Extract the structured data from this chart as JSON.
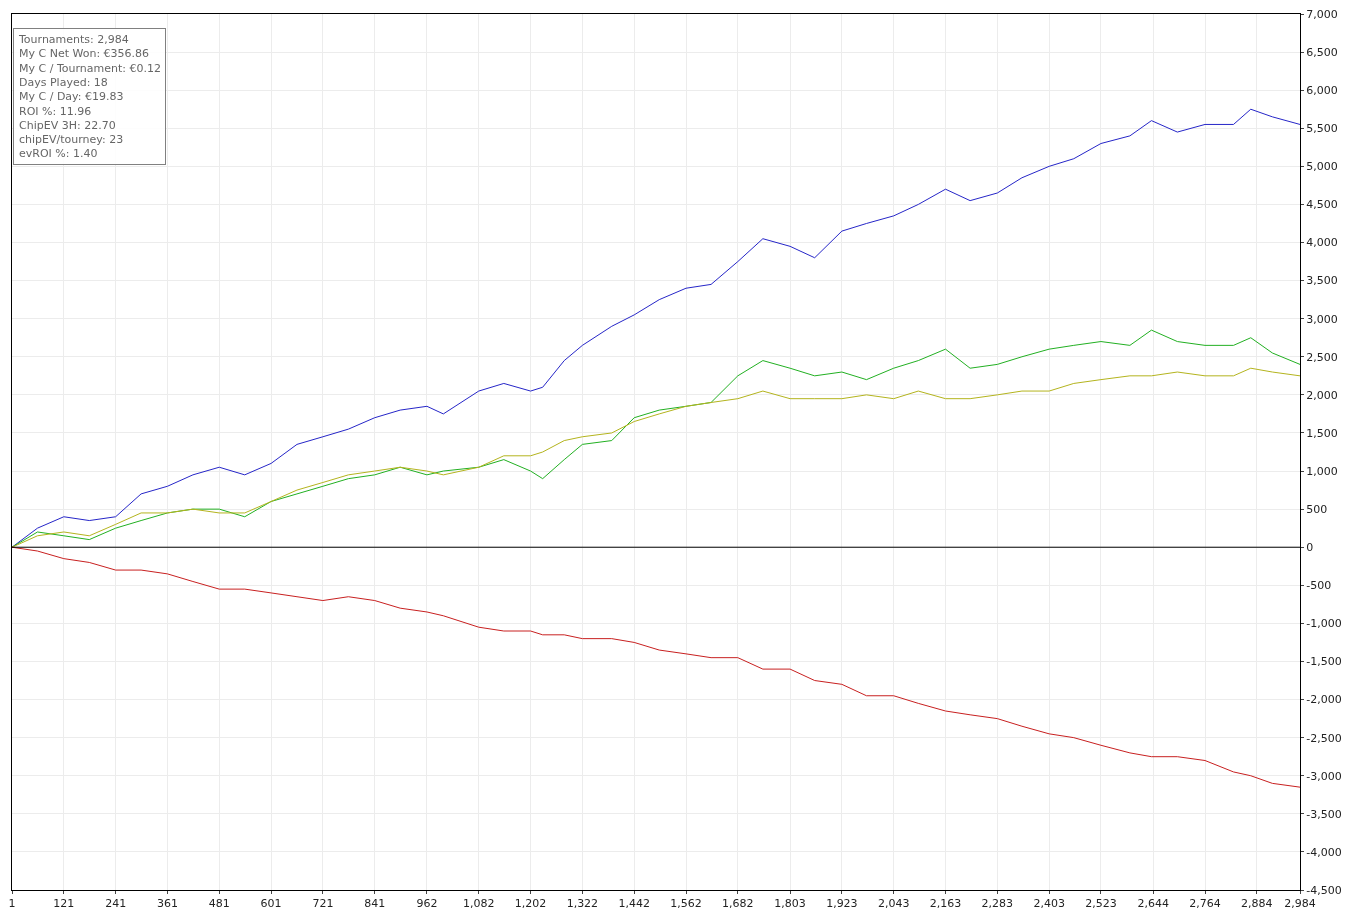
{
  "chart_data": {
    "type": "line",
    "x": [
      1,
      60,
      121,
      180,
      241,
      300,
      361,
      420,
      481,
      540,
      601,
      661,
      721,
      780,
      841,
      900,
      962,
      1000,
      1082,
      1140,
      1202,
      1230,
      1280,
      1322,
      1390,
      1442,
      1500,
      1562,
      1620,
      1682,
      1740,
      1803,
      1860,
      1923,
      1980,
      2043,
      2100,
      2163,
      2220,
      2283,
      2340,
      2403,
      2460,
      2523,
      2590,
      2640,
      2700,
      2764,
      2830,
      2870,
      2920,
      2984
    ],
    "series": [
      {
        "color": "#2626c8",
        "values": [
          0,
          250,
          400,
          350,
          400,
          700,
          800,
          950,
          1050,
          950,
          1100,
          1350,
          1450,
          1550,
          1700,
          1800,
          1850,
          1750,
          2050,
          2150,
          2050,
          2100,
          2450,
          2650,
          2900,
          3050,
          3250,
          3400,
          3450,
          3750,
          4050,
          3950,
          3800,
          4150,
          4250,
          4350,
          4500,
          4700,
          4550,
          4650,
          4850,
          5000,
          5100,
          5300,
          5400,
          5600,
          5450,
          5550,
          5550,
          5750,
          5650,
          5550
        ]
      },
      {
        "color": "#22b022",
        "values": [
          0,
          200,
          150,
          100,
          250,
          350,
          450,
          500,
          500,
          400,
          600,
          700,
          800,
          900,
          950,
          1050,
          950,
          1000,
          1050,
          1150,
          1000,
          900,
          1150,
          1350,
          1400,
          1700,
          1800,
          1850,
          1900,
          2250,
          2450,
          2350,
          2250,
          2300,
          2200,
          2350,
          2450,
          2600,
          2350,
          2400,
          2500,
          2600,
          2650,
          2700,
          2650,
          2850,
          2700,
          2650,
          2650,
          2750,
          2550,
          2400
        ]
      },
      {
        "color": "#b4b41e",
        "values": [
          0,
          150,
          200,
          150,
          300,
          450,
          450,
          500,
          450,
          450,
          600,
          750,
          850,
          950,
          1000,
          1050,
          1000,
          950,
          1050,
          1200,
          1200,
          1250,
          1400,
          1450,
          1500,
          1650,
          1750,
          1850,
          1900,
          1950,
          2050,
          1950,
          1950,
          1950,
          2000,
          1950,
          2050,
          1950,
          1950,
          2000,
          2050,
          2050,
          2150,
          2200,
          2250,
          2250,
          2300,
          2250,
          2250,
          2350,
          2300,
          2250
        ]
      },
      {
        "color": "#c82020",
        "values": [
          0,
          -50,
          -150,
          -200,
          -300,
          -300,
          -350,
          -450,
          -550,
          -550,
          -600,
          -650,
          -700,
          -650,
          -700,
          -800,
          -850,
          -900,
          -1050,
          -1100,
          -1100,
          -1150,
          -1150,
          -1200,
          -1200,
          -1250,
          -1350,
          -1400,
          -1450,
          -1450,
          -1600,
          -1600,
          -1750,
          -1800,
          -1950,
          -1950,
          -2050,
          -2150,
          -2200,
          -2250,
          -2350,
          -2450,
          -2500,
          -2600,
          -2700,
          -2750,
          -2750,
          -2800,
          -2950,
          -3000,
          -3100,
          -3150
        ]
      }
    ],
    "xlim": [
      1,
      2984
    ],
    "xticks": [
      1,
      121,
      241,
      361,
      481,
      601,
      721,
      841,
      962,
      {
        "value": 1082,
        "label": "1,082"
      },
      {
        "value": 1202,
        "label": "1,202"
      },
      {
        "value": 1322,
        "label": "1,322"
      },
      {
        "value": 1442,
        "label": "1,442"
      },
      {
        "value": 1562,
        "label": "1,562"
      },
      {
        "value": 1682,
        "label": "1,682"
      },
      {
        "value": 1803,
        "label": "1,803"
      },
      {
        "value": 1923,
        "label": "1,923"
      },
      {
        "value": 2043,
        "label": "2,043"
      },
      {
        "value": 2163,
        "label": "2,163"
      },
      {
        "value": 2283,
        "label": "2,283"
      },
      {
        "value": 2403,
        "label": "2,403"
      },
      {
        "value": 2523,
        "label": "2,523"
      },
      {
        "value": 2644,
        "label": "2,644"
      },
      {
        "value": 2764,
        "label": "2,764"
      },
      {
        "value": 2884,
        "label": "2,884"
      },
      {
        "value": 2984,
        "label": "2,984"
      }
    ],
    "ylim": [
      -4500,
      7000
    ],
    "yticks": [
      {
        "value": -4500,
        "label": "-4,500"
      },
      {
        "value": -4000,
        "label": "-4,000"
      },
      {
        "value": -3500,
        "label": "-3,500"
      },
      {
        "value": -3000,
        "label": "-3,000"
      },
      {
        "value": -2500,
        "label": "-2,500"
      },
      {
        "value": -2000,
        "label": "-2,000"
      },
      {
        "value": -1500,
        "label": "-1,500"
      },
      {
        "value": -1000,
        "label": "-1,000"
      },
      -500,
      0,
      500,
      {
        "value": 1000,
        "label": "1,000"
      },
      {
        "value": 1500,
        "label": "1,500"
      },
      {
        "value": 2000,
        "label": "2,000"
      },
      {
        "value": 2500,
        "label": "2,500"
      },
      {
        "value": 3000,
        "label": "3,000"
      },
      {
        "value": 3500,
        "label": "3,500"
      },
      {
        "value": 4000,
        "label": "4,000"
      },
      {
        "value": 4500,
        "label": "4,500"
      },
      {
        "value": 5000,
        "label": "5,000"
      },
      {
        "value": 5500,
        "label": "5,500"
      },
      {
        "value": 6000,
        "label": "6,000"
      },
      {
        "value": 6500,
        "label": "6,500"
      },
      {
        "value": 7000,
        "label": "7,000"
      }
    ],
    "ref_lines": [
      {
        "axis": "y",
        "value": 0,
        "color": "#000000"
      }
    ],
    "grid": true,
    "marker": "none",
    "line_style": "solid",
    "annotations": [
      "Tournaments: 2,984",
      "My C Net Won: €356.86",
      "My C / Tournament: €0.12",
      "Days Played: 18",
      "My C / Day: €19.83",
      "ROI %: 11.96",
      "ChipEV 3H: 22.70",
      "chipEV/tourney: 23",
      "evROI %: 1.40"
    ]
  }
}
